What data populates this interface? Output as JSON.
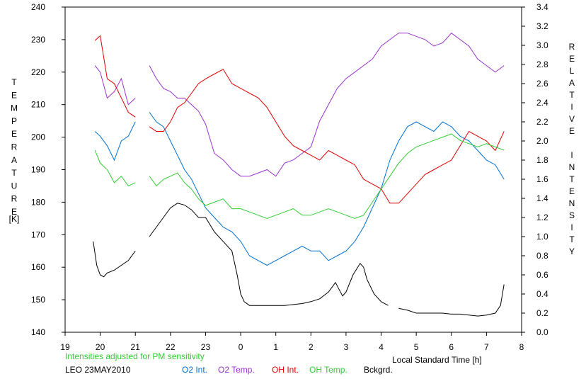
{
  "chart_data": {
    "type": "line",
    "left_axis": {
      "label": "TEMPERATURE",
      "unit": "[K]",
      "ylim": [
        140,
        240
      ],
      "ticks": [
        "140",
        "150",
        "160",
        "170",
        "180",
        "190",
        "200",
        "210",
        "220",
        "230",
        "240"
      ]
    },
    "right_axis": {
      "label": "RELATIVE INTENSITY",
      "ylim": [
        0.0,
        3.4
      ],
      "ticks": [
        "0.0",
        "0.2",
        "0.4",
        "0.6",
        "0.8",
        "1.0",
        "1.2",
        "1.4",
        "1.6",
        "1.8",
        "2.0",
        "2.2",
        "2.4",
        "2.6",
        "2.8",
        "3.0",
        "3.2",
        "3.4"
      ]
    },
    "x_axis": {
      "label": "Local Standard Time [h]",
      "xlim": [
        19,
        32
      ],
      "ticks": [
        "19",
        "20",
        "21",
        "22",
        "23",
        "0",
        "1",
        "2",
        "3",
        "4",
        "5",
        "6",
        "7",
        "8"
      ]
    },
    "note": "Intensities adjusted for PM sensitivity",
    "station": "LEO 23MAY2010",
    "grid": false,
    "series": [
      {
        "name": "O2 Int.",
        "axis": "right",
        "color": "#0070d0",
        "x": [
          19.85,
          20.0,
          20.2,
          20.4,
          20.6,
          20.8,
          21.0,
          21.4,
          21.6,
          21.8,
          22.0,
          22.2,
          22.4,
          22.6,
          22.8,
          23.0,
          23.25,
          23.5,
          23.75,
          24.0,
          24.25,
          24.5,
          24.75,
          25.0,
          25.25,
          25.5,
          25.75,
          26.0,
          26.25,
          26.5,
          26.75,
          27.0,
          27.25,
          27.5,
          27.75,
          28.0,
          28.25,
          28.5,
          28.75,
          29.0,
          29.25,
          29.5,
          29.75,
          30.0,
          30.25,
          30.5,
          30.75,
          31.0,
          31.25,
          31.5
        ],
        "values": [
          2.1,
          2.05,
          1.95,
          1.8,
          2.0,
          2.05,
          2.2,
          2.3,
          2.2,
          2.15,
          2.0,
          1.85,
          1.7,
          1.6,
          1.45,
          1.3,
          1.2,
          1.1,
          1.05,
          0.95,
          0.8,
          0.75,
          0.7,
          0.75,
          0.8,
          0.85,
          0.9,
          0.85,
          0.85,
          0.75,
          0.8,
          0.85,
          0.95,
          1.1,
          1.3,
          1.5,
          1.8,
          2.0,
          2.15,
          2.2,
          2.15,
          2.1,
          2.2,
          2.15,
          2.05,
          2.0,
          1.9,
          1.8,
          1.75,
          1.6
        ]
      },
      {
        "name": "O2 Temp.",
        "axis": "left",
        "color": "#9933cc",
        "x": [
          19.85,
          20.0,
          20.2,
          20.4,
          20.6,
          20.8,
          21.0,
          21.4,
          21.6,
          21.8,
          22.0,
          22.2,
          22.4,
          22.6,
          22.8,
          23.0,
          23.25,
          23.5,
          23.75,
          24.0,
          24.25,
          24.5,
          24.75,
          25.0,
          25.25,
          25.5,
          25.75,
          26.0,
          26.25,
          26.5,
          26.75,
          27.0,
          27.25,
          27.5,
          27.75,
          28.0,
          28.25,
          28.5,
          28.75,
          29.0,
          29.25,
          29.5,
          29.75,
          30.0,
          30.25,
          30.5,
          30.75,
          31.0,
          31.25,
          31.5
        ],
        "values": [
          222,
          220,
          212,
          214,
          218,
          210,
          212,
          222,
          218,
          215,
          214,
          212,
          212,
          210,
          208,
          204,
          195,
          193,
          190,
          188,
          188,
          189,
          190,
          188,
          192,
          193,
          195,
          197,
          205,
          210,
          215,
          218,
          220,
          222,
          224,
          228,
          230,
          232,
          232,
          231,
          230,
          228,
          229,
          232,
          230,
          228,
          224,
          222,
          220,
          222
        ]
      },
      {
        "name": "OH Int.",
        "axis": "right",
        "color": "#e00000",
        "x": [
          19.85,
          20.0,
          20.2,
          20.4,
          20.6,
          20.8,
          21.0,
          21.4,
          21.6,
          21.8,
          22.0,
          22.2,
          22.4,
          22.6,
          22.8,
          23.0,
          23.25,
          23.5,
          23.75,
          24.0,
          24.25,
          24.5,
          24.75,
          25.0,
          25.25,
          25.5,
          25.75,
          26.0,
          26.25,
          26.5,
          26.75,
          27.0,
          27.25,
          27.5,
          27.75,
          28.0,
          28.25,
          28.5,
          28.75,
          29.0,
          29.25,
          29.5,
          29.75,
          30.0,
          30.25,
          30.5,
          30.75,
          31.0,
          31.25,
          31.5
        ],
        "values": [
          3.05,
          3.1,
          2.65,
          2.6,
          2.45,
          2.3,
          2.25,
          2.15,
          2.1,
          2.1,
          2.2,
          2.35,
          2.4,
          2.5,
          2.6,
          2.65,
          2.7,
          2.75,
          2.6,
          2.55,
          2.5,
          2.45,
          2.35,
          2.2,
          2.05,
          1.95,
          1.9,
          1.85,
          1.8,
          1.9,
          1.85,
          1.8,
          1.75,
          1.6,
          1.55,
          1.5,
          1.35,
          1.35,
          1.45,
          1.55,
          1.65,
          1.7,
          1.75,
          1.8,
          1.95,
          2.1,
          2.05,
          2.0,
          1.9,
          2.1
        ]
      },
      {
        "name": "OH Temp.",
        "axis": "left",
        "color": "#33cc33",
        "x": [
          19.85,
          20.0,
          20.2,
          20.4,
          20.6,
          20.8,
          21.0,
          21.4,
          21.6,
          21.8,
          22.0,
          22.2,
          22.4,
          22.6,
          22.8,
          23.0,
          23.25,
          23.5,
          23.75,
          24.0,
          24.25,
          24.5,
          24.75,
          25.0,
          25.25,
          25.5,
          25.75,
          26.0,
          26.25,
          26.5,
          26.75,
          27.0,
          27.25,
          27.5,
          27.75,
          28.0,
          28.25,
          28.5,
          28.75,
          29.0,
          29.25,
          29.5,
          29.75,
          30.0,
          30.25,
          30.5,
          30.75,
          31.0,
          31.25,
          31.5
        ],
        "values": [
          196,
          192,
          190,
          186,
          188,
          185,
          186,
          188,
          185,
          187,
          188,
          189,
          186,
          184,
          181,
          179,
          180,
          181,
          178,
          178,
          177,
          176,
          175,
          176,
          177,
          178,
          176,
          176,
          177,
          178,
          177,
          176,
          175,
          176,
          180,
          184,
          188,
          192,
          195,
          197,
          198,
          199,
          200,
          201,
          199,
          198,
          197,
          198,
          197,
          196
        ]
      },
      {
        "name": "Bckgrd.",
        "axis": "right",
        "color": "#000000",
        "x": [
          19.8,
          19.9,
          20.0,
          20.1,
          20.2,
          20.4,
          20.6,
          20.8,
          21.0,
          21.4,
          21.6,
          21.8,
          22.0,
          22.2,
          22.4,
          22.6,
          22.8,
          23.0,
          23.25,
          23.5,
          23.75,
          23.9,
          24.0,
          24.1,
          24.25,
          24.5,
          24.75,
          25.0,
          25.25,
          25.5,
          25.75,
          26.0,
          26.25,
          26.5,
          26.7,
          26.8,
          26.9,
          27.0,
          27.2,
          27.4,
          27.5,
          27.6,
          27.8,
          28.0,
          28.2,
          28.5,
          28.75,
          29.0,
          29.25,
          29.5,
          29.75,
          30.0,
          30.25,
          30.5,
          30.75,
          31.0,
          31.25,
          31.4,
          31.5
        ],
        "values": [
          0.95,
          0.7,
          0.6,
          0.58,
          0.62,
          0.65,
          0.7,
          0.75,
          0.85,
          1.0,
          1.1,
          1.2,
          1.3,
          1.35,
          1.33,
          1.28,
          1.2,
          1.2,
          1.05,
          0.95,
          0.85,
          0.6,
          0.4,
          0.32,
          0.28,
          0.28,
          0.28,
          0.28,
          0.28,
          0.29,
          0.3,
          0.32,
          0.35,
          0.42,
          0.52,
          0.45,
          0.38,
          0.42,
          0.6,
          0.72,
          0.68,
          0.55,
          0.4,
          0.32,
          0.28,
          0.25,
          0.23,
          0.2,
          0.2,
          0.2,
          0.2,
          0.19,
          0.19,
          0.18,
          0.17,
          0.18,
          0.2,
          0.28,
          0.5
        ]
      }
    ]
  }
}
